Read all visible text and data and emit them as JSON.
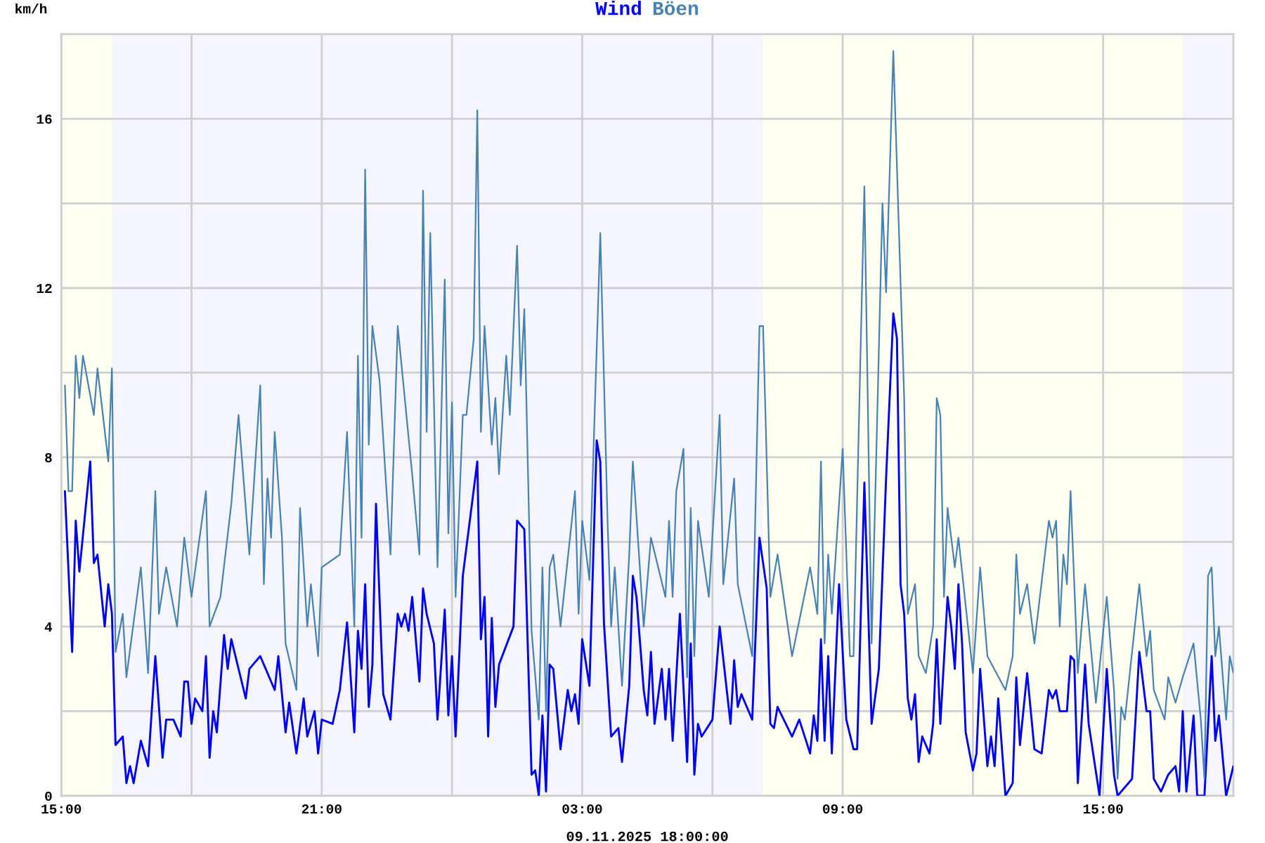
{
  "chart_data": {
    "type": "line",
    "ylabel": "km/h",
    "xlabel": "09.11.2025 18:00:00",
    "grid": true,
    "xlim": [
      "2025-11-08T15:00",
      "2025-11-09T18:00"
    ],
    "xticks": [
      {
        "value": "2025-11-08T15:00",
        "label": "15:00"
      },
      {
        "value": "2025-11-08T18:00",
        "label": null
      },
      {
        "value": "2025-11-08T21:00",
        "label": "21:00"
      },
      {
        "value": "2025-11-09T00:00",
        "label": null
      },
      {
        "value": "2025-11-09T03:00",
        "label": "03:00"
      },
      {
        "value": "2025-11-09T06:00",
        "label": null
      },
      {
        "value": "2025-11-09T09:00",
        "label": "09:00"
      },
      {
        "value": "2025-11-09T12:00",
        "label": null
      },
      {
        "value": "2025-11-09T15:00",
        "label": "15:00"
      }
    ],
    "ylim": [
      0,
      18
    ],
    "yticks": [
      0,
      {
        "value": 2,
        "label": null
      },
      4,
      {
        "value": 6,
        "label": null
      },
      8,
      {
        "value": 10,
        "label": null
      },
      12,
      {
        "value": 14,
        "label": null
      },
      16
    ],
    "bands": [
      {
        "axis": "x",
        "from": "2025-11-08T15:00",
        "to": "2025-11-08T16:10",
        "color": "#fffff2"
      },
      {
        "axis": "x",
        "from": "2025-11-08T16:10",
        "to": "2025-11-09T07:10",
        "color": "#f5f5ff"
      },
      {
        "axis": "x",
        "from": "2025-11-09T07:10",
        "to": "2025-11-09T16:50",
        "color": "#fffff2"
      },
      {
        "axis": "x",
        "from": "2025-11-09T16:50",
        "to": "2025-11-09T18:00",
        "color": "#f5f5ff"
      }
    ],
    "series": [
      {
        "name": "Wind",
        "color": "#0000ff",
        "x": [
          "2025-11-08T15:05",
          "2025-11-08T15:15",
          "2025-11-08T15:20",
          "2025-11-08T15:25",
          "2025-11-08T15:40",
          "2025-11-08T15:45",
          "2025-11-08T15:50",
          "2025-11-08T16:00",
          "2025-11-08T16:05",
          "2025-11-08T16:10",
          "2025-11-08T16:15",
          "2025-11-08T16:25",
          "2025-11-08T16:30",
          "2025-11-08T16:35",
          "2025-11-08T16:40",
          "2025-11-08T16:50",
          "2025-11-08T17:00",
          "2025-11-08T17:10",
          "2025-11-08T17:20",
          "2025-11-08T17:25",
          "2025-11-08T17:35",
          "2025-11-08T17:45",
          "2025-11-08T17:50",
          "2025-11-08T17:55",
          "2025-11-08T18:00",
          "2025-11-08T18:05",
          "2025-11-08T18:15",
          "2025-11-08T18:20",
          "2025-11-08T18:25",
          "2025-11-08T18:30",
          "2025-11-08T18:35",
          "2025-11-08T18:45",
          "2025-11-08T18:50",
          "2025-11-08T18:55",
          "2025-11-08T19:15",
          "2025-11-08T19:20",
          "2025-11-08T19:35",
          "2025-11-08T19:55",
          "2025-11-08T20:00",
          "2025-11-08T20:10",
          "2025-11-08T20:15",
          "2025-11-08T20:25",
          "2025-11-08T20:35",
          "2025-11-08T20:40",
          "2025-11-08T20:50",
          "2025-11-08T20:55",
          "2025-11-08T21:00",
          "2025-11-08T21:15",
          "2025-11-08T21:25",
          "2025-11-08T21:35",
          "2025-11-08T21:45",
          "2025-11-08T21:50",
          "2025-11-08T21:55",
          "2025-11-08T22:00",
          "2025-11-08T22:05",
          "2025-11-08T22:10",
          "2025-11-08T22:15",
          "2025-11-08T22:20",
          "2025-11-08T22:25",
          "2025-11-08T22:35",
          "2025-11-08T22:45",
          "2025-11-08T22:50",
          "2025-11-08T22:55",
          "2025-11-08T23:00",
          "2025-11-08T23:05",
          "2025-11-08T23:15",
          "2025-11-08T23:20",
          "2025-11-08T23:25",
          "2025-11-08T23:35",
          "2025-11-08T23:40",
          "2025-11-08T23:50",
          "2025-11-08T23:55",
          "2025-11-09T00:00",
          "2025-11-09T00:05",
          "2025-11-09T00:15",
          "2025-11-09T00:35",
          "2025-11-09T00:40",
          "2025-11-09T00:45",
          "2025-11-09T00:50",
          "2025-11-09T00:55",
          "2025-11-09T01:00",
          "2025-11-09T01:05",
          "2025-11-09T01:25",
          "2025-11-09T01:30",
          "2025-11-09T01:40",
          "2025-11-09T01:50",
          "2025-11-09T01:55",
          "2025-11-09T02:00",
          "2025-11-09T02:05",
          "2025-11-09T02:10",
          "2025-11-09T02:15",
          "2025-11-09T02:20",
          "2025-11-09T02:30",
          "2025-11-09T02:40",
          "2025-11-09T02:45",
          "2025-11-09T02:50",
          "2025-11-09T02:55",
          "2025-11-09T03:00",
          "2025-11-09T03:10",
          "2025-11-09T03:20",
          "2025-11-09T03:25",
          "2025-11-09T03:30",
          "2025-11-09T03:40",
          "2025-11-09T03:50",
          "2025-11-09T03:55",
          "2025-11-09T04:05",
          "2025-11-09T04:10",
          "2025-11-09T04:15",
          "2025-11-09T04:25",
          "2025-11-09T04:30",
          "2025-11-09T04:35",
          "2025-11-09T04:40",
          "2025-11-09T04:50",
          "2025-11-09T04:55",
          "2025-11-09T05:00",
          "2025-11-09T05:05",
          "2025-11-09T05:15",
          "2025-11-09T05:25",
          "2025-11-09T05:30",
          "2025-11-09T05:35",
          "2025-11-09T05:40",
          "2025-11-09T05:45",
          "2025-11-09T06:00",
          "2025-11-09T06:10",
          "2025-11-09T06:25",
          "2025-11-09T06:30",
          "2025-11-09T06:35",
          "2025-11-09T06:40",
          "2025-11-09T06:55",
          "2025-11-09T07:05",
          "2025-11-09T07:15",
          "2025-11-09T07:20",
          "2025-11-09T07:25",
          "2025-11-09T07:30",
          "2025-11-09T07:50",
          "2025-11-09T08:00",
          "2025-11-09T08:15",
          "2025-11-09T08:20",
          "2025-11-09T08:25",
          "2025-11-09T08:30",
          "2025-11-09T08:35",
          "2025-11-09T08:40",
          "2025-11-09T08:45",
          "2025-11-09T08:55",
          "2025-11-09T09:05",
          "2025-11-09T09:15",
          "2025-11-09T09:20",
          "2025-11-09T09:30",
          "2025-11-09T09:40",
          "2025-11-09T09:50",
          "2025-11-09T10:00",
          "2025-11-09T10:10",
          "2025-11-09T10:15",
          "2025-11-09T10:20",
          "2025-11-09T10:25",
          "2025-11-09T10:30",
          "2025-11-09T10:35",
          "2025-11-09T10:40",
          "2025-11-09T10:45",
          "2025-11-09T10:50",
          "2025-11-09T11:00",
          "2025-11-09T11:05",
          "2025-11-09T11:10",
          "2025-11-09T11:15",
          "2025-11-09T11:25",
          "2025-11-09T11:30",
          "2025-11-09T11:35",
          "2025-11-09T11:40",
          "2025-11-09T11:45",
          "2025-11-09T11:50",
          "2025-11-09T12:00",
          "2025-11-09T12:05",
          "2025-11-09T12:10",
          "2025-11-09T12:20",
          "2025-11-09T12:25",
          "2025-11-09T12:30",
          "2025-11-09T12:35",
          "2025-11-09T12:45",
          "2025-11-09T12:55",
          "2025-11-09T13:00",
          "2025-11-09T13:05",
          "2025-11-09T13:15",
          "2025-11-09T13:25",
          "2025-11-09T13:35",
          "2025-11-09T13:45",
          "2025-11-09T13:50",
          "2025-11-09T13:55",
          "2025-11-09T14:00",
          "2025-11-09T14:10",
          "2025-11-09T14:15",
          "2025-11-09T14:20",
          "2025-11-09T14:25",
          "2025-11-09T14:35",
          "2025-11-09T14:40",
          "2025-11-09T14:55",
          "2025-11-09T15:05",
          "2025-11-09T15:15",
          "2025-11-09T15:20",
          "2025-11-09T15:40",
          "2025-11-09T15:50",
          "2025-11-09T16:00",
          "2025-11-09T16:05",
          "2025-11-09T16:10",
          "2025-11-09T16:20",
          "2025-11-09T16:30",
          "2025-11-09T16:40",
          "2025-11-09T16:45",
          "2025-11-09T16:50",
          "2025-11-09T16:55",
          "2025-11-09T17:05",
          "2025-11-09T17:10",
          "2025-11-09T17:20",
          "2025-11-09T17:30",
          "2025-11-09T17:35",
          "2025-11-09T17:40",
          "2025-11-09T17:50",
          "2025-11-09T18:00"
        ],
        "values": [
          7.2,
          3.4,
          6.5,
          5.3,
          7.9,
          5.5,
          5.7,
          4.0,
          5.0,
          4.3,
          1.2,
          1.4,
          0.3,
          0.7,
          0.3,
          1.3,
          0.7,
          3.3,
          0.9,
          1.8,
          1.8,
          1.4,
          2.7,
          2.7,
          1.7,
          2.3,
          2.0,
          3.3,
          0.9,
          2.0,
          1.5,
          3.8,
          3.0,
          3.7,
          2.3,
          3.0,
          3.3,
          2.5,
          3.3,
          1.5,
          2.2,
          1.0,
          2.3,
          1.4,
          2.0,
          1.0,
          1.8,
          1.7,
          2.5,
          4.1,
          1.5,
          3.9,
          3.0,
          5.0,
          2.1,
          3.1,
          6.9,
          4.6,
          2.4,
          1.8,
          4.3,
          4.0,
          4.3,
          3.9,
          4.7,
          2.7,
          4.9,
          4.3,
          3.6,
          1.8,
          4.4,
          1.9,
          3.3,
          1.4,
          5.2,
          7.9,
          3.7,
          4.7,
          1.4,
          4.2,
          2.1,
          3.1,
          4.0,
          6.5,
          6.3,
          0.5,
          0.6,
          0.0,
          1.9,
          0.1,
          3.1,
          3.0,
          1.1,
          2.5,
          2.0,
          2.4,
          1.7,
          3.7,
          2.6,
          8.4,
          7.9,
          4.1,
          1.4,
          1.6,
          0.8,
          2.6,
          5.2,
          4.7,
          2.5,
          1.9,
          3.4,
          1.7,
          3.0,
          1.8,
          3.0,
          1.3,
          4.3,
          0.8,
          3.6,
          0.5,
          1.7,
          1.4,
          1.8,
          4.0,
          1.7,
          3.2,
          2.1,
          2.4,
          1.8,
          6.1,
          4.9,
          1.7,
          1.6,
          2.1,
          1.4,
          1.8,
          1.0,
          1.9,
          1.3,
          3.7,
          1.3,
          3.3,
          1.0,
          5.0,
          1.8,
          1.1,
          1.1,
          7.4,
          1.7,
          3.0,
          7.5,
          11.4,
          10.8,
          5.0,
          4.3,
          2.3,
          1.8,
          2.4,
          0.8,
          1.4,
          1.0,
          1.7,
          3.7,
          1.7,
          4.7,
          4.0,
          3.0,
          5.0,
          3.6,
          1.5,
          0.6,
          1.0,
          3.0,
          0.7,
          1.4,
          0.7,
          2.3,
          0.0,
          0.3,
          2.8,
          1.2,
          2.9,
          1.1,
          1.0,
          2.5,
          2.3,
          2.5,
          2.0,
          2.0,
          3.3,
          3.2,
          0.3,
          3.1,
          1.7,
          0.0,
          3.0,
          0.5,
          0.0,
          0.4,
          3.4,
          2.0,
          2.0,
          0.4,
          0.1,
          0.5,
          0.7,
          0.1,
          2.0,
          0.1,
          1.9,
          0.0,
          0.0,
          3.3,
          1.3,
          1.9,
          0.0,
          0.7
        ]
      },
      {
        "name": "Böen",
        "color": "#4682b4",
        "x": [
          "2025-11-08T15:05",
          "2025-11-08T15:10",
          "2025-11-08T15:15",
          "2025-11-08T15:20",
          "2025-11-08T15:25",
          "2025-11-08T15:30",
          "2025-11-08T15:45",
          "2025-11-08T15:50",
          "2025-11-08T16:05",
          "2025-11-08T16:10",
          "2025-11-08T16:15",
          "2025-11-08T16:25",
          "2025-11-08T16:30",
          "2025-11-08T16:50",
          "2025-11-08T17:00",
          "2025-11-08T17:10",
          "2025-11-08T17:15",
          "2025-11-08T17:25",
          "2025-11-08T17:40",
          "2025-11-08T17:50",
          "2025-11-08T18:00",
          "2025-11-08T18:20",
          "2025-11-08T18:25",
          "2025-11-08T18:40",
          "2025-11-08T18:55",
          "2025-11-08T19:05",
          "2025-11-08T19:20",
          "2025-11-08T19:35",
          "2025-11-08T19:40",
          "2025-11-08T19:45",
          "2025-11-08T19:50",
          "2025-11-08T19:55",
          "2025-11-08T20:05",
          "2025-11-08T20:10",
          "2025-11-08T20:25",
          "2025-11-08T20:30",
          "2025-11-08T20:40",
          "2025-11-08T20:45",
          "2025-11-08T20:55",
          "2025-11-08T21:00",
          "2025-11-08T21:25",
          "2025-11-08T21:35",
          "2025-11-08T21:45",
          "2025-11-08T21:50",
          "2025-11-08T21:55",
          "2025-11-08T22:00",
          "2025-11-08T22:05",
          "2025-11-08T22:10",
          "2025-11-08T22:20",
          "2025-11-08T22:35",
          "2025-11-08T22:45",
          "2025-11-08T23:05",
          "2025-11-08T23:15",
          "2025-11-08T23:20",
          "2025-11-08T23:25",
          "2025-11-08T23:30",
          "2025-11-08T23:40",
          "2025-11-08T23:50",
          "2025-11-08T23:55",
          "2025-11-09T00:00",
          "2025-11-09T00:05",
          "2025-11-09T00:15",
          "2025-11-09T00:20",
          "2025-11-09T00:30",
          "2025-11-09T00:35",
          "2025-11-09T00:40",
          "2025-11-09T00:45",
          "2025-11-09T00:55",
          "2025-11-09T01:00",
          "2025-11-09T01:05",
          "2025-11-09T01:15",
          "2025-11-09T01:20",
          "2025-11-09T01:30",
          "2025-11-09T01:35",
          "2025-11-09T01:40",
          "2025-11-09T01:50",
          "2025-11-09T02:00",
          "2025-11-09T02:05",
          "2025-11-09T02:10",
          "2025-11-09T02:15",
          "2025-11-09T02:20",
          "2025-11-09T02:30",
          "2025-11-09T02:50",
          "2025-11-09T02:55",
          "2025-11-09T03:00",
          "2025-11-09T03:10",
          "2025-11-09T03:25",
          "2025-11-09T03:35",
          "2025-11-09T03:40",
          "2025-11-09T03:45",
          "2025-11-09T03:55",
          "2025-11-09T04:05",
          "2025-11-09T04:10",
          "2025-11-09T04:25",
          "2025-11-09T04:35",
          "2025-11-09T04:55",
          "2025-11-09T05:00",
          "2025-11-09T05:05",
          "2025-11-09T05:10",
          "2025-11-09T05:20",
          "2025-11-09T05:25",
          "2025-11-09T05:30",
          "2025-11-09T05:35",
          "2025-11-09T05:40",
          "2025-11-09T05:55",
          "2025-11-09T06:10",
          "2025-11-09T06:15",
          "2025-11-09T06:30",
          "2025-11-09T06:35",
          "2025-11-09T06:55",
          "2025-11-09T07:05",
          "2025-11-09T07:10",
          "2025-11-09T07:20",
          "2025-11-09T07:30",
          "2025-11-09T07:50",
          "2025-11-09T08:15",
          "2025-11-09T08:25",
          "2025-11-09T08:30",
          "2025-11-09T08:35",
          "2025-11-09T08:40",
          "2025-11-09T08:45",
          "2025-11-09T09:00",
          "2025-11-09T09:10",
          "2025-11-09T09:15",
          "2025-11-09T09:30",
          "2025-11-09T09:40",
          "2025-11-09T09:55",
          "2025-11-09T10:00",
          "2025-11-09T10:10",
          "2025-11-09T10:25",
          "2025-11-09T10:30",
          "2025-11-09T10:40",
          "2025-11-09T10:45",
          "2025-11-09T10:55",
          "2025-11-09T11:05",
          "2025-11-09T11:10",
          "2025-11-09T11:15",
          "2025-11-09T11:20",
          "2025-11-09T11:25",
          "2025-11-09T11:35",
          "2025-11-09T11:40",
          "2025-11-09T12:00",
          "2025-11-09T12:10",
          "2025-11-09T12:20",
          "2025-11-09T12:45",
          "2025-11-09T12:55",
          "2025-11-09T13:00",
          "2025-11-09T13:05",
          "2025-11-09T13:15",
          "2025-11-09T13:25",
          "2025-11-09T13:45",
          "2025-11-09T13:50",
          "2025-11-09T13:55",
          "2025-11-09T14:00",
          "2025-11-09T14:05",
          "2025-11-09T14:10",
          "2025-11-09T14:15",
          "2025-11-09T14:25",
          "2025-11-09T14:35",
          "2025-11-09T14:50",
          "2025-11-09T15:05",
          "2025-11-09T15:15",
          "2025-11-09T15:20",
          "2025-11-09T15:25",
          "2025-11-09T15:30",
          "2025-11-09T15:50",
          "2025-11-09T16:00",
          "2025-11-09T16:05",
          "2025-11-09T16:10",
          "2025-11-09T16:25",
          "2025-11-09T16:30",
          "2025-11-09T16:40",
          "2025-11-09T16:50",
          "2025-11-09T17:05",
          "2025-11-09T17:15",
          "2025-11-09T17:20",
          "2025-11-09T17:25",
          "2025-11-09T17:30",
          "2025-11-09T17:35",
          "2025-11-09T17:40",
          "2025-11-09T17:50",
          "2025-11-09T17:55",
          "2025-11-09T18:00"
        ],
        "values": [
          9.7,
          7.2,
          7.2,
          10.4,
          9.4,
          10.4,
          9.0,
          10.1,
          7.9,
          10.1,
          3.4,
          4.3,
          2.8,
          5.4,
          2.9,
          7.2,
          4.3,
          5.4,
          4.0,
          6.1,
          4.7,
          7.2,
          4.0,
          4.7,
          6.9,
          9.0,
          5.7,
          9.7,
          5.0,
          7.5,
          6.1,
          8.6,
          6.1,
          3.6,
          2.5,
          6.8,
          4.0,
          5.0,
          3.3,
          5.4,
          5.7,
          8.6,
          4.0,
          10.4,
          6.1,
          14.8,
          8.3,
          11.1,
          9.8,
          5.7,
          11.1,
          7.6,
          5.7,
          14.3,
          8.6,
          13.3,
          5.4,
          12.2,
          6.2,
          9.3,
          4.7,
          9.0,
          9.0,
          10.8,
          16.2,
          8.6,
          11.1,
          8.3,
          9.4,
          7.6,
          10.4,
          9.0,
          13.0,
          9.7,
          11.5,
          3.9,
          1.8,
          5.4,
          2.0,
          5.4,
          5.7,
          4.0,
          7.2,
          4.3,
          6.5,
          5.1,
          13.3,
          6.5,
          4.0,
          5.4,
          2.6,
          5.7,
          7.9,
          4.0,
          6.1,
          4.7,
          6.5,
          4.7,
          7.2,
          8.2,
          2.8,
          6.8,
          3.3,
          6.5,
          4.7,
          9.0,
          5.0,
          7.5,
          5.0,
          3.3,
          11.1,
          11.1,
          4.7,
          5.7,
          3.3,
          5.4,
          4.3,
          7.9,
          3.6,
          5.7,
          4.3,
          8.2,
          3.3,
          3.3,
          14.4,
          3.6,
          14.0,
          11.9,
          17.6,
          9.4,
          4.3,
          5.0,
          3.3,
          2.9,
          4.0,
          9.4,
          9.0,
          4.7,
          6.8,
          5.4,
          6.1,
          2.9,
          5.4,
          3.3,
          2.5,
          3.3,
          5.7,
          4.3,
          5.0,
          3.6,
          6.5,
          6.1,
          6.5,
          4.0,
          5.7,
          5.0,
          7.2,
          2.9,
          5.0,
          2.2,
          4.7,
          2.5,
          0.4,
          2.1,
          1.8,
          5.0,
          3.3,
          3.9,
          2.5,
          1.8,
          2.8,
          2.2,
          2.8,
          3.6,
          1.8,
          0.4,
          5.2,
          5.4,
          3.3,
          4.0,
          1.8,
          3.3,
          2.9
        ]
      }
    ]
  }
}
